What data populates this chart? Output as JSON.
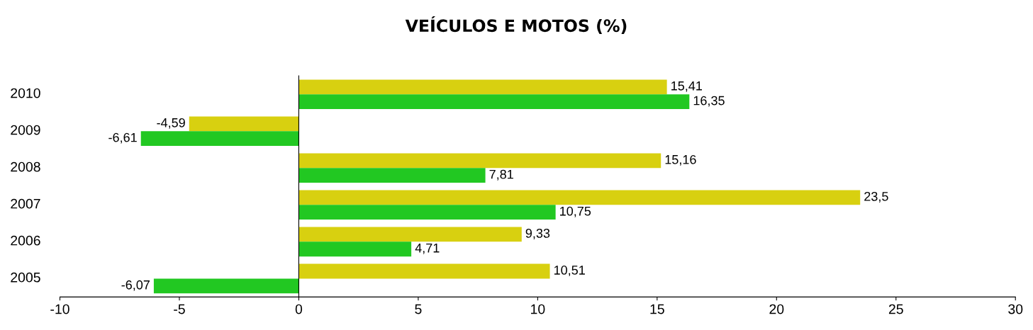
{
  "chart_data": {
    "type": "bar",
    "orientation": "horizontal",
    "title": "VEÍCULOS E MOTOS (%)",
    "categories": [
      "2010",
      "2009",
      "2008",
      "2007",
      "2006",
      "2005"
    ],
    "series": [
      {
        "color": "#d8d010",
        "values": [
          15.41,
          -4.59,
          15.16,
          23.5,
          9.33,
          10.51
        ],
        "value_labels": [
          "15,41",
          "-4,59",
          "15,16",
          "23,5",
          "9,33",
          "10,51"
        ]
      },
      {
        "color": "#22c822",
        "values": [
          16.35,
          -6.61,
          7.81,
          10.75,
          4.71,
          -6.07
        ],
        "value_labels": [
          "16,35",
          "-6,61",
          "7,81",
          "10,75",
          "4,71",
          "-6,07"
        ]
      }
    ],
    "xlim": [
      -10,
      30
    ],
    "xticks": [
      -10,
      -5,
      0,
      5,
      10,
      15,
      20,
      25,
      30
    ]
  }
}
